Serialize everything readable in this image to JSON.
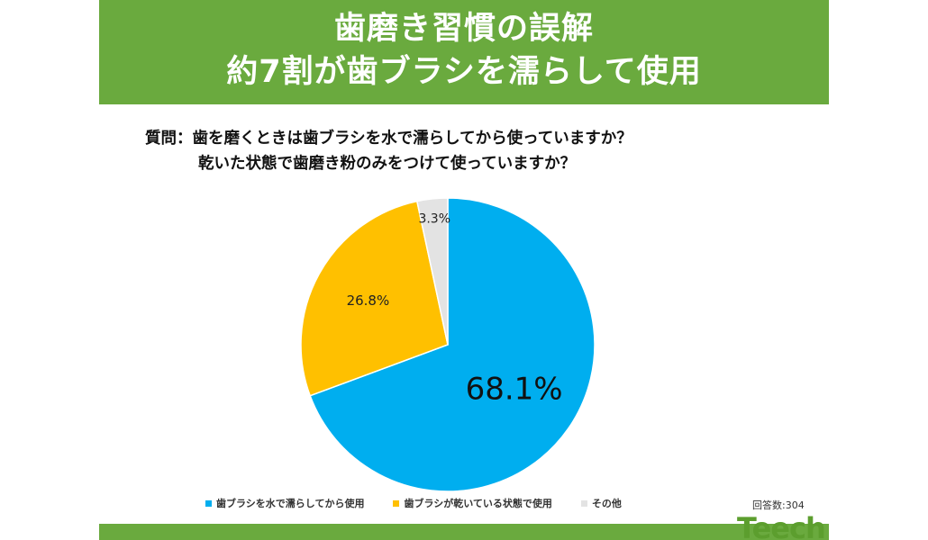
{
  "title": {
    "line1": "歯磨き習慣の誤解",
    "line2": "約7割が歯ブラシを濡らして使用"
  },
  "question": {
    "line1": "質問：歯を磨くときは歯ブラシを水で濡らしてから使っていますか？",
    "line2": "乾いた状態で歯磨き粉のみをつけて使っていますか？"
  },
  "respondents": "回答数:304",
  "logo_text": "Teech",
  "colors": {
    "banner": "#6aaa3e",
    "slice_wet": "#00aeef",
    "slice_dry": "#ffc000",
    "slice_other": "#e3e3e3"
  },
  "chart_data": {
    "type": "pie",
    "slices": [
      {
        "name": "歯ブラシを水で濡らしてから使用",
        "value": 68.1,
        "label": "68.1%",
        "color": "#00aeef"
      },
      {
        "name": "歯ブラシが乾いている状態で使用",
        "value": 26.8,
        "label": "26.8%",
        "color": "#ffc000"
      },
      {
        "name": "その他",
        "value": 3.3,
        "label": "3.3%",
        "color": "#e3e3e3"
      }
    ],
    "legend_placement": "bottom"
  }
}
